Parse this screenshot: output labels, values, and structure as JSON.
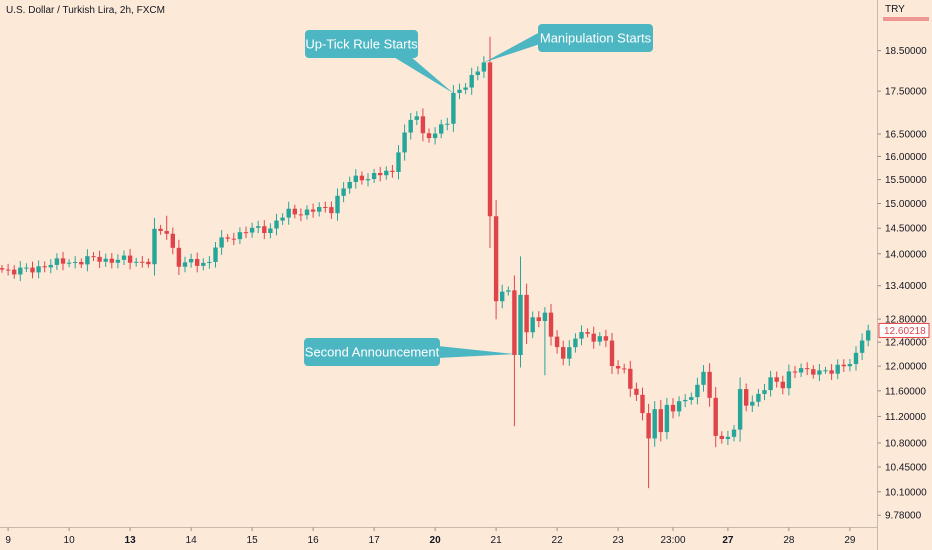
{
  "header": {
    "symbol_title": "U.S. Dollar / Turkish Lira, 2h, FXCM",
    "currency": "TRY"
  },
  "colors": {
    "background": "#fde9d8",
    "up_candle": "#26a69a",
    "down_candle": "#e0444b",
    "callout": "#4db6c3",
    "price_tag": "#e0444b"
  },
  "chart_data": {
    "type": "candlestick",
    "title": "U.S. Dollar / Turkish Lira, 2h, FXCM",
    "xlabel": "",
    "ylabel": "",
    "y_scale": "log",
    "ylim": [
      9.65,
      19.4
    ],
    "x_ticks": [
      {
        "label": "9",
        "bold": false,
        "i": 1
      },
      {
        "label": "10",
        "bold": false,
        "i": 11
      },
      {
        "label": "13",
        "bold": true,
        "i": 21
      },
      {
        "label": "14",
        "bold": false,
        "i": 31
      },
      {
        "label": "15",
        "bold": false,
        "i": 41
      },
      {
        "label": "16",
        "bold": false,
        "i": 51
      },
      {
        "label": "17",
        "bold": false,
        "i": 61
      },
      {
        "label": "20",
        "bold": true,
        "i": 71
      },
      {
        "label": "21",
        "bold": false,
        "i": 81
      },
      {
        "label": "22",
        "bold": false,
        "i": 91
      },
      {
        "label": "23",
        "bold": false,
        "i": 101
      },
      {
        "label": "23:00",
        "bold": false,
        "i": 110
      },
      {
        "label": "27",
        "bold": true,
        "i": 119
      },
      {
        "label": "28",
        "bold": false,
        "i": 129
      },
      {
        "label": "29",
        "bold": false,
        "i": 139
      }
    ],
    "y_ticks": [
      "18.50000",
      "17.50000",
      "16.50000",
      "16.00000",
      "15.50000",
      "15.00000",
      "14.50000",
      "14.00000",
      "13.40000",
      "12.80000",
      "12.40000",
      "12.00000",
      "11.60000",
      "11.20000",
      "10.80000",
      "10.45000",
      "10.10000",
      "9.78000"
    ],
    "last_price": "12.60218",
    "last_price_value": 12.60218,
    "annotations": [
      {
        "text": "Up-Tick Rule Starts",
        "target_i": 74,
        "target_value": 17.45
      },
      {
        "text": "Manipulation Starts",
        "target_i": 79,
        "target_value": 18.2
      },
      {
        "text": "Second Announcement",
        "target_i": 84,
        "target_value": 12.2
      }
    ],
    "anchors": [
      [
        0,
        13.7
      ],
      [
        5,
        13.68
      ],
      [
        7,
        13.8
      ],
      [
        12,
        13.85
      ],
      [
        15,
        13.9
      ],
      [
        19,
        13.88
      ],
      [
        24,
        13.85
      ],
      [
        25,
        14.4
      ],
      [
        27,
        14.45
      ],
      [
        28,
        14.1
      ],
      [
        29,
        13.8
      ],
      [
        31,
        13.82
      ],
      [
        34,
        13.85
      ],
      [
        35,
        14.15
      ],
      [
        37,
        14.3
      ],
      [
        40,
        14.45
      ],
      [
        44,
        14.5
      ],
      [
        45,
        14.65
      ],
      [
        47,
        14.8
      ],
      [
        54,
        14.9
      ],
      [
        55,
        15.15
      ],
      [
        57,
        15.45
      ],
      [
        59,
        15.55
      ],
      [
        64,
        15.65
      ],
      [
        65,
        16.2
      ],
      [
        67,
        16.8
      ],
      [
        68,
        16.9
      ],
      [
        69,
        16.45
      ],
      [
        71,
        16.55
      ],
      [
        73,
        16.75
      ],
      [
        74,
        17.4
      ],
      [
        76,
        17.7
      ],
      [
        78,
        17.95
      ],
      [
        79,
        18.2
      ],
      [
        80,
        14.7
      ],
      [
        81,
        13.2
      ],
      [
        82,
        13.3
      ],
      [
        83,
        13.25
      ],
      [
        84,
        12.2
      ],
      [
        85,
        13.2
      ],
      [
        86,
        12.6
      ],
      [
        87,
        12.9
      ],
      [
        88,
        12.7
      ],
      [
        89,
        12.9
      ],
      [
        90,
        12.5
      ],
      [
        91,
        12.3
      ],
      [
        92,
        12.2
      ],
      [
        94,
        12.4
      ],
      [
        95,
        12.6
      ],
      [
        97,
        12.45
      ],
      [
        98,
        12.55
      ],
      [
        99,
        12.35
      ],
      [
        100,
        12.0
      ],
      [
        102,
        11.95
      ],
      [
        103,
        11.7
      ],
      [
        104,
        11.5
      ],
      [
        105,
        11.2
      ],
      [
        106,
        10.9
      ],
      [
        107,
        11.3
      ],
      [
        108,
        11.0
      ],
      [
        109,
        11.4
      ],
      [
        110,
        11.2
      ],
      [
        111,
        11.45
      ],
      [
        113,
        11.5
      ],
      [
        114,
        11.75
      ],
      [
        115,
        11.85
      ],
      [
        116,
        11.45
      ],
      [
        117,
        10.95
      ],
      [
        118,
        10.85
      ],
      [
        120,
        11.0
      ],
      [
        121,
        11.55
      ],
      [
        122,
        11.4
      ],
      [
        123,
        11.45
      ],
      [
        125,
        11.65
      ],
      [
        126,
        11.75
      ],
      [
        128,
        11.7
      ],
      [
        129,
        11.9
      ],
      [
        131,
        11.95
      ],
      [
        132,
        11.88
      ],
      [
        134,
        11.95
      ],
      [
        136,
        11.9
      ],
      [
        138,
        12.0
      ],
      [
        140,
        12.2
      ],
      [
        141,
        12.45
      ],
      [
        142,
        12.60218
      ]
    ]
  }
}
